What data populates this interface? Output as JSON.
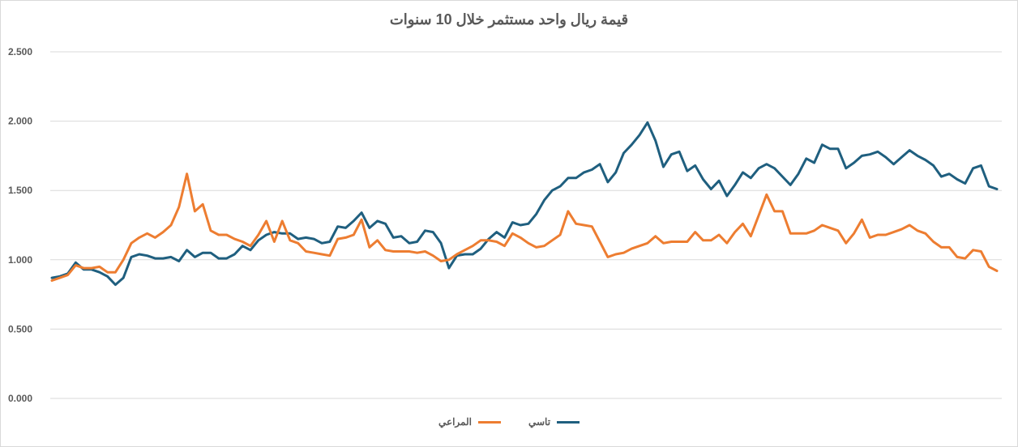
{
  "chart_data": {
    "type": "line",
    "title": "قيمة ريال واحد مستثمر خلال 10 سنوات",
    "xlabel": "",
    "ylabel": "",
    "ylim": [
      0,
      2.5
    ],
    "yticks": [
      "0.000",
      "0.500",
      "1.000",
      "1.500",
      "2.000",
      "2.500"
    ],
    "grid": true,
    "legend_position": "bottom",
    "series": [
      {
        "name": "تاسي",
        "color": "#1f5f7f",
        "values": [
          0.87,
          0.88,
          0.9,
          0.98,
          0.93,
          0.93,
          0.91,
          0.88,
          0.82,
          0.87,
          1.02,
          1.04,
          1.03,
          1.01,
          1.01,
          1.02,
          0.99,
          1.07,
          1.02,
          1.05,
          1.05,
          1.01,
          1.01,
          1.04,
          1.1,
          1.07,
          1.14,
          1.18,
          1.2,
          1.19,
          1.19,
          1.15,
          1.16,
          1.15,
          1.12,
          1.13,
          1.24,
          1.23,
          1.28,
          1.34,
          1.23,
          1.28,
          1.26,
          1.16,
          1.17,
          1.12,
          1.13,
          1.21,
          1.2,
          1.12,
          0.94,
          1.03,
          1.04,
          1.04,
          1.08,
          1.15,
          1.2,
          1.16,
          1.27,
          1.25,
          1.26,
          1.33,
          1.43,
          1.5,
          1.53,
          1.59,
          1.59,
          1.63,
          1.65,
          1.69,
          1.56,
          1.63,
          1.77,
          1.83,
          1.9,
          1.99,
          1.86,
          1.67,
          1.76,
          1.78,
          1.64,
          1.68,
          1.58,
          1.51,
          1.57,
          1.46,
          1.54,
          1.63,
          1.59,
          1.66,
          1.69,
          1.66,
          1.6,
          1.54,
          1.62,
          1.73,
          1.7,
          1.83,
          1.8,
          1.8,
          1.66,
          1.7,
          1.75,
          1.76,
          1.78,
          1.74,
          1.69,
          1.74,
          1.79,
          1.75,
          1.72,
          1.68,
          1.6,
          1.62,
          1.58,
          1.55,
          1.66,
          1.68,
          1.53,
          1.51
        ]
      },
      {
        "name": "المراعي",
        "color": "#ed7d31",
        "values": [
          0.85,
          0.87,
          0.89,
          0.96,
          0.94,
          0.94,
          0.95,
          0.91,
          0.91,
          1.0,
          1.12,
          1.16,
          1.19,
          1.16,
          1.2,
          1.25,
          1.38,
          1.62,
          1.35,
          1.4,
          1.21,
          1.18,
          1.18,
          1.15,
          1.13,
          1.1,
          1.18,
          1.28,
          1.13,
          1.28,
          1.14,
          1.12,
          1.06,
          1.05,
          1.04,
          1.03,
          1.15,
          1.16,
          1.18,
          1.29,
          1.09,
          1.14,
          1.07,
          1.06,
          1.06,
          1.06,
          1.05,
          1.06,
          1.03,
          0.99,
          1.0,
          1.04,
          1.07,
          1.1,
          1.14,
          1.14,
          1.13,
          1.1,
          1.19,
          1.16,
          1.12,
          1.09,
          1.1,
          1.14,
          1.18,
          1.35,
          1.26,
          1.25,
          1.24,
          1.13,
          1.02,
          1.04,
          1.05,
          1.08,
          1.1,
          1.12,
          1.17,
          1.12,
          1.13,
          1.13,
          1.13,
          1.2,
          1.14,
          1.14,
          1.18,
          1.12,
          1.2,
          1.26,
          1.17,
          1.32,
          1.47,
          1.35,
          1.35,
          1.19,
          1.19,
          1.19,
          1.21,
          1.25,
          1.23,
          1.21,
          1.12,
          1.19,
          1.29,
          1.16,
          1.18,
          1.18,
          1.2,
          1.22,
          1.25,
          1.21,
          1.19,
          1.13,
          1.09,
          1.09,
          1.02,
          1.01,
          1.07,
          1.06,
          0.95,
          0.92
        ]
      }
    ]
  }
}
